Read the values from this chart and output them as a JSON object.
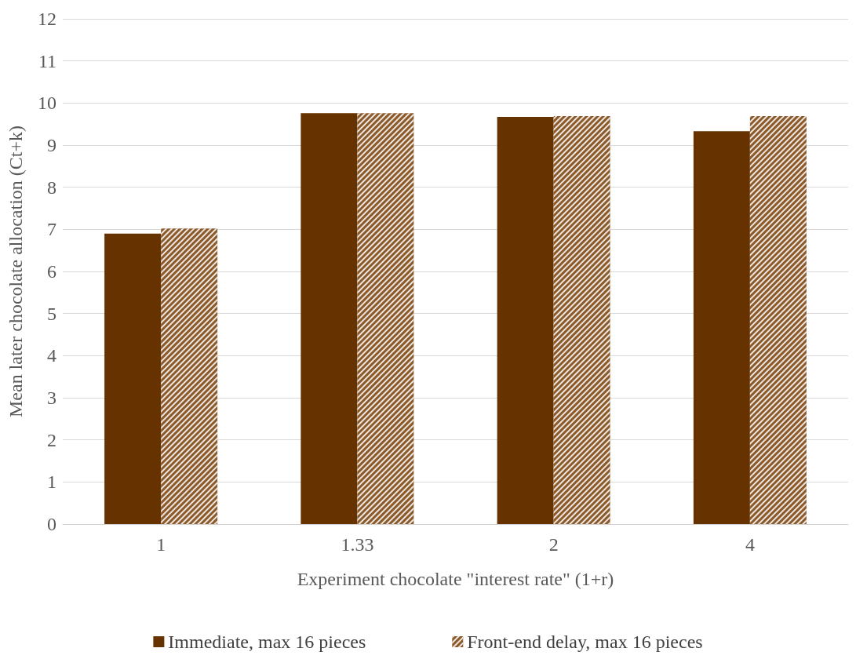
{
  "chart_data": {
    "type": "bar",
    "xlabel": "Experiment chocolate \"interest rate\" (1+r)",
    "ylabel": "Mean later chocolate allocation (Ct+k)",
    "categories": [
      "1",
      "1.33",
      "2",
      "4"
    ],
    "series": [
      {
        "name": "Immediate, max 16 pieces",
        "color": "#663300",
        "values": [
          6.9,
          9.76,
          9.67,
          9.33
        ]
      },
      {
        "name": "Front-end delay, max 16 pieces",
        "color": "#8b5a2b",
        "values": [
          7.02,
          9.76,
          9.69,
          9.69
        ]
      }
    ],
    "ylim": [
      0,
      12
    ],
    "yticks": [
      0,
      1,
      2,
      3,
      4,
      5,
      6,
      7,
      8,
      9,
      10,
      11,
      12
    ],
    "grid": "y",
    "legend": "bottom"
  }
}
